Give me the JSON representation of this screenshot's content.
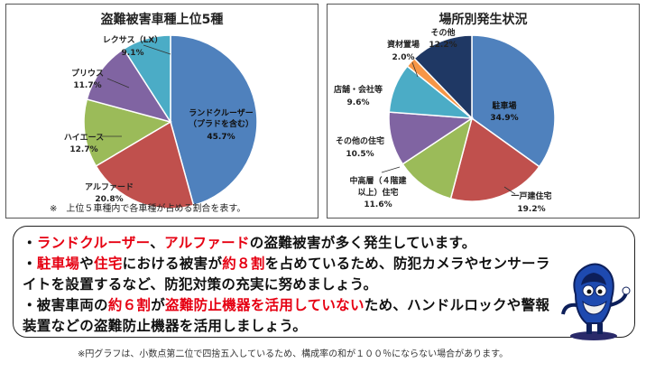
{
  "chart_data": [
    {
      "type": "pie",
      "title": "盗難被害車種上位5種",
      "slices": [
        {
          "name": "ランドクルーザー（プラドを含む）",
          "value": 45.7,
          "color": "#4f81bd"
        },
        {
          "name": "アルファード",
          "value": 20.8,
          "color": "#c0504d"
        },
        {
          "name": "ハイエース",
          "value": 12.7,
          "color": "#9bbb59"
        },
        {
          "name": "プリウス",
          "value": 11.7,
          "color": "#8064a2"
        },
        {
          "name": "レクサス（LX）",
          "value": 9.1,
          "color": "#4bacc6"
        }
      ],
      "note": "※　上位５車種内で各車種が占める割合を表す。"
    },
    {
      "type": "pie",
      "title": "場所別発生状況",
      "slices": [
        {
          "name": "駐車場",
          "value": 34.9,
          "color": "#4f81bd"
        },
        {
          "name": "一戸建住宅",
          "value": 19.2,
          "color": "#c0504d"
        },
        {
          "name": "中高層（４階建以上）住宅",
          "value": 11.6,
          "color": "#9bbb59"
        },
        {
          "name": "その他の住宅",
          "value": 10.5,
          "color": "#8064a2"
        },
        {
          "name": "店舗・会社等",
          "value": 9.6,
          "color": "#4bacc6"
        },
        {
          "name": "資材置場",
          "value": 2.0,
          "color": "#f79646"
        },
        {
          "name": "その他",
          "value": 12.2,
          "color": "#1f3864"
        }
      ]
    }
  ],
  "labels_left": {
    "s0a": "ランドクルーザー",
    "s0b": "（プラドを含む）",
    "s0c": "45.7%",
    "s1a": "アルファード",
    "s1b": "20.8%",
    "s2a": "ハイエース",
    "s2b": "12.7%",
    "s3a": "プリウス",
    "s3b": "11.7%",
    "s4a": "レクサス（LX）",
    "s4b": "9.1%"
  },
  "labels_right": {
    "s0a": "駐車場",
    "s0b": "34.9%",
    "s1a": "一戸建住宅",
    "s1b": "19.2%",
    "s2a": "中高層（４階建",
    "s2b": "以上）住宅",
    "s2c": "11.6%",
    "s3a": "その他の住宅",
    "s3b": "10.5%",
    "s4a": "店舗・会社等",
    "s4b": "9.6%",
    "s5a": "資材置場",
    "s5b": "2.0%",
    "s6a": "その他",
    "s6b": "12.2%"
  },
  "message": {
    "line1": {
      "p1": "・",
      "r1": "ランドクルーザー",
      "p2": "、",
      "r2": "アルファード",
      "p3": "の盗難被害が多く発生しています。"
    },
    "line2": {
      "p1": "・",
      "r1": "駐車場",
      "p2": "や",
      "r2": "住宅",
      "p3": "における被害が",
      "r3": "約８割",
      "p4": "を占めているため、防犯カメラやセンサーラ"
    },
    "line3": {
      "p1": "イトを設置するなど、防犯対策の充実に努めましょう。"
    },
    "line4": {
      "p1": "・被害車両の",
      "r1": "約６割",
      "p2": "が",
      "r2": "盗難防止機器を活用していない",
      "p3": "ため、ハンドルロックや警報"
    },
    "line5": {
      "p1": "装置などの盗難防止機器を活用しましょう。"
    }
  },
  "footnote": "※円グラフは、小数点第二位で四捨五入しているため、構成率の和が１００％にならない場合があります。"
}
